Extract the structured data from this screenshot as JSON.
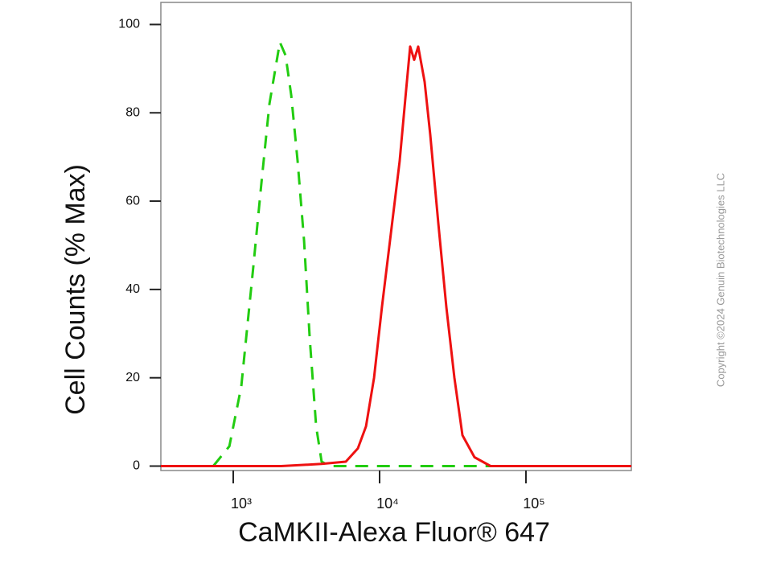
{
  "chart_data": {
    "type": "line",
    "xlabel": "CaMKII-Alexa Fluor® 647",
    "ylabel": "Cell Counts (% Max)",
    "watermark": "Copyright ©2024 Genuin Biotechnologies LLC",
    "xscale": "log",
    "xlim": [
      320,
      525000
    ],
    "ylim": [
      -1,
      105
    ],
    "xticks": [
      {
        "value": 1000,
        "label": "10³"
      },
      {
        "value": 10000,
        "label": "10⁴"
      },
      {
        "value": 100000,
        "label": "10⁵"
      }
    ],
    "yticks": [
      0,
      20,
      40,
      60,
      80,
      100
    ],
    "series": [
      {
        "color": "#22cc11",
        "dash": true,
        "x": [
          730,
          940,
          1135,
          1370,
          1556,
          1767,
          2083,
          2277,
          2490,
          2754,
          3048,
          3330,
          3683,
          4017,
          4561,
          8000,
          50000,
          500000
        ],
        "values": [
          0,
          4.5,
          18,
          45,
          64,
          82,
          96,
          93,
          84,
          69,
          51,
          29,
          9,
          1,
          0,
          0,
          0,
          0
        ]
      },
      {
        "color": "#ee1111",
        "dash": false,
        "x": [
          320,
          2128,
          4017,
          5875,
          7110,
          8073,
          9162,
          10380,
          11780,
          13710,
          15170,
          16170,
          17230,
          18350,
          20300,
          22200,
          25180,
          28580,
          32430,
          36800,
          44490,
          57300,
          525000
        ],
        "values": [
          0,
          0,
          0.5,
          1,
          4,
          9,
          20,
          36,
          51,
          69,
          85,
          95,
          92,
          95,
          87,
          75,
          55,
          36,
          20,
          7,
          2,
          0,
          0
        ]
      }
    ]
  }
}
